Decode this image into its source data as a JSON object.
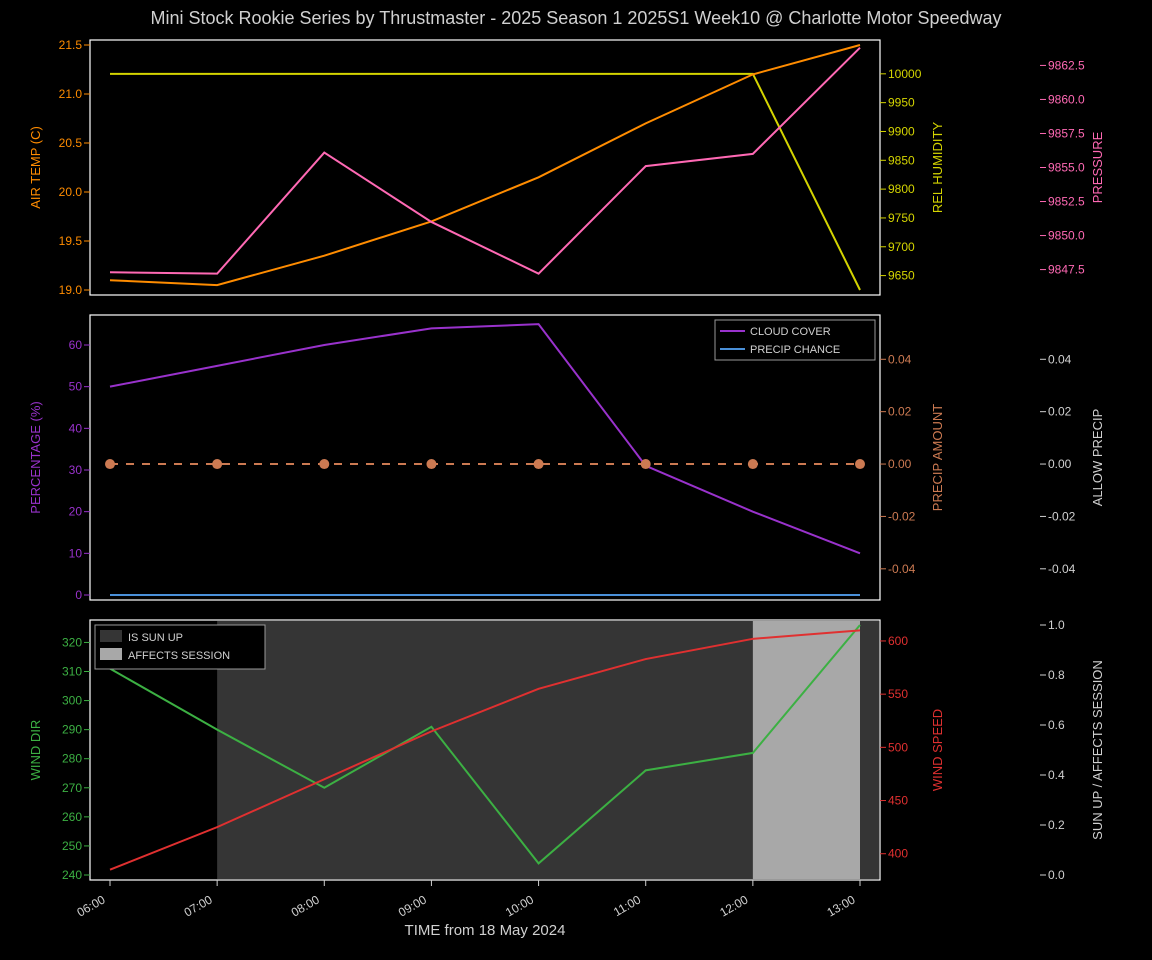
{
  "title": "Mini Stock Rookie Series by Thrustmaster - 2025 Season 1 2025S1 Week10 @ Charlotte Motor Speedway",
  "title_color": "#d0d0d0",
  "title_fontsize": 18,
  "background_color": "#000000",
  "panel_bg": "#000000",
  "panel_border": "#ffffff",
  "xaxis": {
    "label": "TIME from 18 May 2024",
    "label_color": "#d0d0d0",
    "label_fontsize": 15,
    "ticks": [
      "06:00",
      "07:00",
      "08:00",
      "09:00",
      "10:00",
      "11:00",
      "12:00",
      "13:00"
    ],
    "tick_color": "#d0d0d0",
    "tick_fontsize": 12,
    "tick_rotation": 30
  },
  "panel1": {
    "x": [
      0,
      1,
      2,
      3,
      4,
      5,
      6,
      7
    ],
    "air_temp": {
      "label": "AIR TEMP (C)",
      "color": "#ff8c00",
      "ylim": [
        19.0,
        21.5
      ],
      "yticks": [
        19.0,
        19.5,
        20.0,
        20.5,
        21.0,
        21.5
      ],
      "values": [
        19.1,
        19.05,
        19.35,
        19.7,
        20.15,
        20.7,
        21.2,
        21.5
      ]
    },
    "rel_humidity": {
      "label": "REL HUMIDITY",
      "color": "#d4d400",
      "ylim": [
        9625,
        10050
      ],
      "yticks": [
        9650,
        9700,
        9750,
        9800,
        9850,
        9900,
        9950,
        10000
      ],
      "values": [
        10000,
        10000,
        10000,
        10000,
        10000,
        10000,
        10000,
        9625
      ]
    },
    "pressure": {
      "label": "PRESSURE",
      "color": "#ff69b4",
      "ylim": [
        9846,
        9864
      ],
      "yticks": [
        9847.5,
        9850.0,
        9852.5,
        9855.0,
        9857.5,
        9860.0,
        9862.5
      ],
      "values": [
        9847.3,
        9847.2,
        9856.1,
        9851.0,
        9847.2,
        9855.1,
        9856.0,
        9863.8
      ]
    }
  },
  "panel2": {
    "x": [
      0,
      1,
      2,
      3,
      4,
      5,
      6,
      7
    ],
    "percentage": {
      "label": "PERCENTAGE (%)",
      "color": "#9932cc",
      "ylim": [
        0,
        66
      ],
      "yticks": [
        0,
        10,
        20,
        30,
        40,
        50,
        60
      ]
    },
    "cloud_cover": {
      "label": "CLOUD COVER",
      "color": "#9932cc",
      "values": [
        50,
        55,
        60,
        64,
        65,
        31,
        20,
        10
      ]
    },
    "precip_chance": {
      "label": "PRECIP CHANCE",
      "color": "#4a90d9",
      "values": [
        0,
        0,
        0,
        0,
        0,
        0,
        0,
        0
      ]
    },
    "precip_amount": {
      "label": "PRECIP AMOUNT",
      "color": "#cc7a52",
      "ylim": [
        -0.05,
        0.055
      ],
      "yticks": [
        -0.04,
        -0.02,
        0.0,
        0.02,
        0.04
      ],
      "values": [
        0,
        0,
        0,
        0,
        0,
        0,
        0,
        0
      ]
    },
    "allow_precip": {
      "label": "ALLOW PRECIP",
      "color": "#d0d0d0",
      "ylim": [
        -0.05,
        0.055
      ],
      "yticks": [
        -0.04,
        -0.02,
        0.0,
        0.02,
        0.04
      ]
    }
  },
  "panel3": {
    "x": [
      0,
      1,
      2,
      3,
      4,
      5,
      6,
      7
    ],
    "wind_dir": {
      "label": "WIND DIR",
      "color": "#3cb043",
      "ylim": [
        240,
        326
      ],
      "yticks": [
        240,
        250,
        260,
        270,
        280,
        290,
        300,
        310,
        320
      ],
      "values": [
        311,
        290,
        270,
        291,
        244,
        276,
        282,
        326
      ]
    },
    "wind_speed": {
      "label": "WIND SPEED",
      "color": "#e03030",
      "ylim": [
        380,
        615
      ],
      "yticks": [
        400,
        450,
        500,
        550,
        600
      ],
      "values": [
        385,
        425,
        470,
        515,
        555,
        583,
        602,
        610
      ]
    },
    "sun_session": {
      "label": "SUN UP / AFFECTS SESSION",
      "color": "#d0d0d0",
      "ylim": [
        0.0,
        1.0
      ],
      "yticks": [
        0.0,
        0.2,
        0.4,
        0.6,
        0.8,
        1.0
      ]
    },
    "is_sun_up": {
      "label": "IS SUN UP",
      "color": "#353535",
      "xstart": 1,
      "xend": 8
    },
    "affects_session": {
      "label": "AFFECTS SESSION",
      "color": "#a8a8a8",
      "xstart": 6,
      "xend": 7
    }
  }
}
